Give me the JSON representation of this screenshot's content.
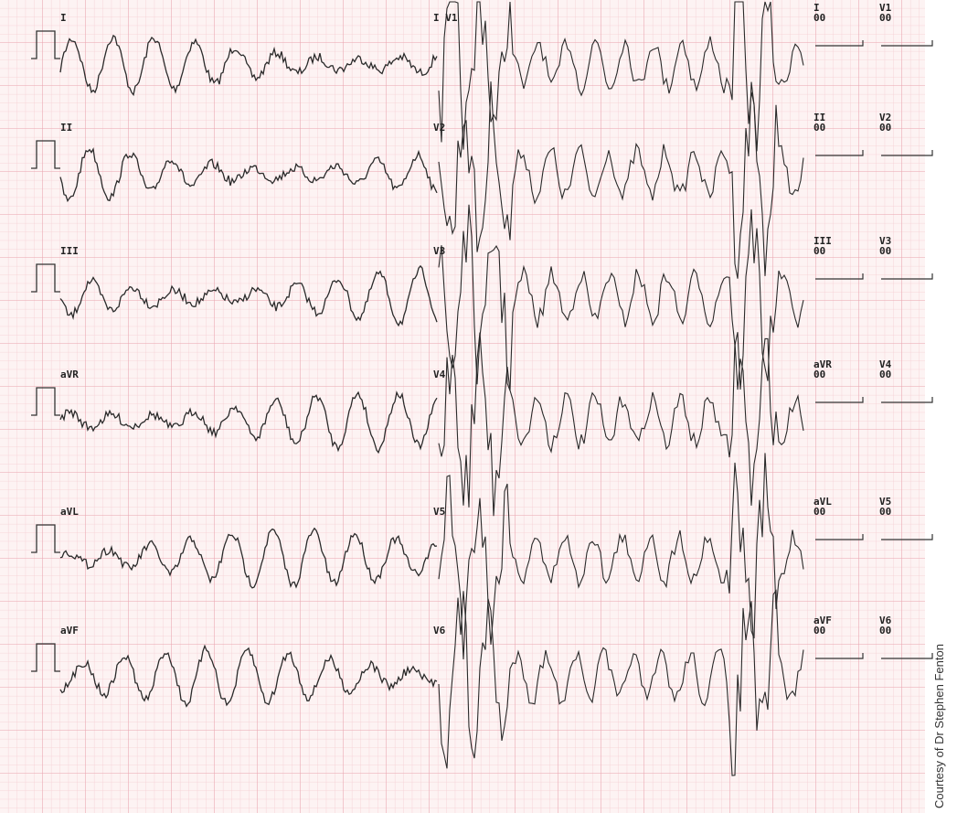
{
  "left_leads": [
    "I",
    "II",
    "III",
    "aVR",
    "aVL",
    "aVF"
  ],
  "mid_leads": [
    "I V1",
    "V2",
    "V3",
    "V4",
    "V5",
    "V6"
  ],
  "right_panel": [
    {
      "lead": "I",
      "value": "00"
    },
    {
      "lead": "V1",
      "value": "00"
    },
    {
      "lead": "II",
      "value": "00"
    },
    {
      "lead": "V2",
      "value": "00"
    },
    {
      "lead": "III",
      "value": "00"
    },
    {
      "lead": "V3",
      "value": "00"
    },
    {
      "lead": "aVR",
      "value": "00"
    },
    {
      "lead": "V4",
      "value": "00"
    },
    {
      "lead": "aVL",
      "value": "00"
    },
    {
      "lead": "V5",
      "value": "00"
    },
    {
      "lead": "aVF",
      "value": "00"
    },
    {
      "lead": "V6",
      "value": "00"
    }
  ],
  "credit": "Courtesy of Dr Stephen Fenton"
}
